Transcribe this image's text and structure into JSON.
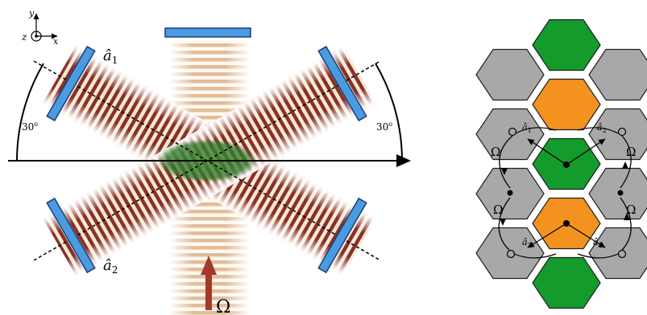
{
  "left_panel": {
    "axes": {
      "x": "x",
      "y": "y",
      "z": "z"
    },
    "angle_left": "30",
    "angle_right": "30",
    "angle_sup": "o",
    "mode_top": "â",
    "mode_top_sub": "1",
    "mode_bottom": "â",
    "mode_bottom_sub": "2",
    "pump": "Ω",
    "colors": {
      "mirror_fill": "#4a9be0",
      "mirror_stroke": "#1b3f7a",
      "beam_dark": "#7a1a10",
      "beam_mid": "#c96a3c",
      "atoms": "#2f7d2f",
      "pump_arrow": "#a23a2a"
    }
  },
  "right_panel": {
    "labels": {
      "a1_top": "â",
      "a1_top_sub": "1",
      "a2_top": "â",
      "a2_top_sub": "2",
      "a2_bottom": "â",
      "a2_bottom_sub": "2",
      "a1_bottom": "â",
      "a1_bottom_sub": "1",
      "omega_left_top": "Ω",
      "omega_right_top": "Ω",
      "omega_left_bottom": "Ω",
      "omega_right_bottom": "Ω"
    },
    "colors": {
      "grey": "#a8a8a8",
      "green": "#139b2c",
      "orange": "#f4921f",
      "edge": "#202020"
    }
  }
}
